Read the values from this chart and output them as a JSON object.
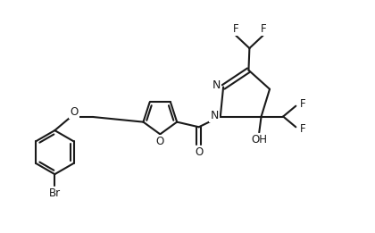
{
  "bg_color": "#ffffff",
  "line_color": "#1a1a1a",
  "line_width": 1.5,
  "font_size": 8.5,
  "figsize": [
    4.2,
    2.61
  ],
  "dpi": 100,
  "xlim": [
    -1.8,
    5.8
  ],
  "ylim": [
    -0.3,
    5.2
  ]
}
